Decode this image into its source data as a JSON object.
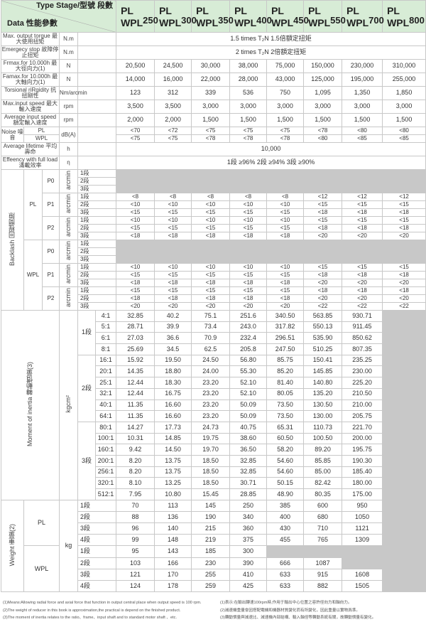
{
  "header": {
    "corner_top": "Type Stage/型號 段數",
    "corner_bottom": "Data 性能參數",
    "models": [
      {
        "a": "PL",
        "b": "WPL",
        "n": "250"
      },
      {
        "a": "PL",
        "b": "WPL",
        "n": "300"
      },
      {
        "a": "PL",
        "b": "WPL",
        "n": "350"
      },
      {
        "a": "PL",
        "b": "WPL",
        "n": "400"
      },
      {
        "a": "PL",
        "b": "WPL",
        "n": "450"
      },
      {
        "a": "PL",
        "b": "WPL",
        "n": "550"
      },
      {
        "a": "PL",
        "b": "WPL",
        "n": "700"
      },
      {
        "a": "PL",
        "b": "WPL",
        "n": "800"
      }
    ]
  },
  "specs": [
    {
      "label": "Max. output torgue 最大使用扭矩",
      "unit": "N.m",
      "span": "1.5 times T₂N      1.5倍額定扭矩"
    },
    {
      "label": "Emergecy stop 故障停止扭矩",
      "unit": "N.m",
      "span": "2 times T₂N      2倍額定扭矩"
    },
    {
      "label": "Frmax.for 10.000h 最大徑向力(1)",
      "unit": "N",
      "values": [
        "20,500",
        "24,500",
        "30,000",
        "38,000",
        "75,000",
        "150,000",
        "230,000",
        "310,000"
      ]
    },
    {
      "label": "Famax.for 10.000h 最大軸向力(1)",
      "unit": "N",
      "values": [
        "14,000",
        "16,000",
        "22,000",
        "28,000",
        "43,000",
        "125,000",
        "195,000",
        "255,000"
      ]
    },
    {
      "label": "Torsional riRgidity 抗扭剛性",
      "unit": "Nm/arcmin",
      "values": [
        "123",
        "312",
        "339",
        "536",
        "750",
        "1,095",
        "1,350",
        "1,850"
      ]
    },
    {
      "label": "Max.input speed 最大輸入速度",
      "unit": "rpm",
      "values": [
        "3,500",
        "3,500",
        "3,000",
        "3,000",
        "3,000",
        "3,000",
        "3,000",
        "3,000"
      ]
    },
    {
      "label": "Average input speed 額定輸入速度",
      "unit": "rpm",
      "values": [
        "2,000",
        "2,000",
        "1,500",
        "1,500",
        "1,500",
        "1,500",
        "1,500",
        "1,500"
      ]
    }
  ],
  "noise": {
    "label": "Noise 噪音",
    "unit": "dB(A)",
    "rows": [
      {
        "type": "PL",
        "values": [
          "<70",
          "<72",
          "<75",
          "<75",
          "<75",
          "<78",
          "<80",
          "<80"
        ]
      },
      {
        "type": "WPL",
        "values": [
          "<75",
          "<75",
          "<78",
          "<78",
          "<78",
          "<80",
          "<85",
          "<85"
        ]
      }
    ]
  },
  "lifetime": {
    "label": "Average lifetime 平均壽命",
    "unit": "h",
    "value": "10,000"
  },
  "efficiency": {
    "label": "Effeency with full load 滿載效率",
    "unit": "η",
    "value": "1段 ≥96%        2段 ≥94%        3段 ≥90%"
  },
  "backlash": {
    "label": "Backlash 回程間隙",
    "unit": "arcmin",
    "groups": [
      {
        "type": "PL",
        "classes": [
          {
            "name": "P0",
            "rows": [
              {
                "stage": "1段",
                "values": null
              },
              {
                "stage": "2段",
                "values": null
              },
              {
                "stage": "3段",
                "values": null
              }
            ]
          },
          {
            "name": "P1",
            "rows": [
              {
                "stage": "1段",
                "values": [
                  "<8",
                  "<8",
                  "<8",
                  "<8",
                  "<8",
                  "<12",
                  "<12",
                  "<12"
                ]
              },
              {
                "stage": "2段",
                "values": [
                  "<10",
                  "<10",
                  "<10",
                  "<10",
                  "<10",
                  "<15",
                  "<15",
                  "<15"
                ]
              },
              {
                "stage": "3段",
                "values": [
                  "<15",
                  "<15",
                  "<15",
                  "<15",
                  "<15",
                  "<18",
                  "<18",
                  "<18"
                ]
              }
            ]
          },
          {
            "name": "P2",
            "rows": [
              {
                "stage": "1段",
                "values": [
                  "<10",
                  "<10",
                  "<10",
                  "<10",
                  "<10",
                  "<15",
                  "<15",
                  "<15"
                ]
              },
              {
                "stage": "2段",
                "values": [
                  "<15",
                  "<15",
                  "<15",
                  "<15",
                  "<15",
                  "<18",
                  "<18",
                  "<18"
                ]
              },
              {
                "stage": "3段",
                "values": [
                  "<18",
                  "<18",
                  "<18",
                  "<18",
                  "<18",
                  "<20",
                  "<20",
                  "<20"
                ]
              }
            ]
          }
        ]
      },
      {
        "type": "WPL",
        "classes": [
          {
            "name": "P0",
            "rows": [
              {
                "stage": "1段",
                "values": null
              },
              {
                "stage": "2段",
                "values": null
              },
              {
                "stage": "3段",
                "values": null
              }
            ]
          },
          {
            "name": "P1",
            "rows": [
              {
                "stage": "1段",
                "values": [
                  "<10",
                  "<10",
                  "<10",
                  "<10",
                  "<10",
                  "<15",
                  "<15",
                  "<15"
                ]
              },
              {
                "stage": "2段",
                "values": [
                  "<15",
                  "<15",
                  "<15",
                  "<15",
                  "<15",
                  "<18",
                  "<18",
                  "<18"
                ]
              },
              {
                "stage": "3段",
                "values": [
                  "<18",
                  "<18",
                  "<18",
                  "<18",
                  "<18",
                  "<20",
                  "<20",
                  "<20"
                ]
              }
            ]
          },
          {
            "name": "P2",
            "rows": [
              {
                "stage": "1段",
                "values": [
                  "<15",
                  "<15",
                  "<15",
                  "<15",
                  "<15",
                  "<18",
                  "<18",
                  "<18"
                ]
              },
              {
                "stage": "2段",
                "values": [
                  "<18",
                  "<18",
                  "<18",
                  "<18",
                  "<18",
                  "<20",
                  "<20",
                  "<20"
                ]
              },
              {
                "stage": "3段",
                "values": [
                  "<20",
                  "<20",
                  "<20",
                  "<20",
                  "<20",
                  "<22",
                  "<22",
                  "<22"
                ]
              }
            ]
          }
        ]
      }
    ]
  },
  "inertia": {
    "label": "Moment of inertia 轉動慣量(3)",
    "unit": "kgcm²",
    "stages": [
      {
        "stage": "1段",
        "rows": [
          [
            "4:1",
            "32.85",
            "40.2",
            "75.1",
            "251.6",
            "340.50",
            "563.85",
            "930.71",
            null
          ],
          [
            "5:1",
            "28.71",
            "39.9",
            "73.4",
            "243.0",
            "317.82",
            "550.13",
            "911.45",
            null
          ],
          [
            "6:1",
            "27.03",
            "36.6",
            "70.9",
            "232.4",
            "296.51",
            "535.90",
            "850.62",
            null
          ],
          [
            "8:1",
            "25.69",
            "34.5",
            "62.5",
            "205.8",
            "247.50",
            "510.25",
            "807.35",
            null
          ]
        ]
      },
      {
        "stage": "2段",
        "rows": [
          [
            "16:1",
            "15.92",
            "19.50",
            "24.50",
            "56.80",
            "85.75",
            "150.41",
            "235.25",
            null
          ],
          [
            "20:1",
            "14.35",
            "18.80",
            "24.00",
            "55.30",
            "85.20",
            "145.85",
            "230.00",
            null
          ],
          [
            "25:1",
            "12.44",
            "18.30",
            "23.20",
            "52.10",
            "81.40",
            "140.80",
            "225.20",
            null
          ],
          [
            "32:1",
            "12.44",
            "16.75",
            "23.20",
            "52.10",
            "80.05",
            "135.20",
            "210.50",
            null
          ],
          [
            "40:1",
            "11.35",
            "16.60",
            "23.20",
            "50.09",
            "73.50",
            "130.50",
            "210.00",
            null
          ],
          [
            "64:1",
            "11.35",
            "16.60",
            "23.20",
            "50.09",
            "73.50",
            "130.00",
            "205.75",
            null
          ]
        ]
      },
      {
        "stage": "3段",
        "rows": [
          [
            "80:1",
            "14.27",
            "17.73",
            "24.73",
            "40.75",
            "65.31",
            "110.73",
            "221.70",
            null
          ],
          [
            "100:1",
            "10.31",
            "14.85",
            "19.75",
            "38.60",
            "60.50",
            "100.50",
            "200.00",
            null
          ],
          [
            "160:1",
            "9.42",
            "14.50",
            "19.70",
            "36.50",
            "58.20",
            "89.20",
            "195.75",
            null
          ],
          [
            "200:1",
            "8.20",
            "13.75",
            "18.50",
            "32.85",
            "54.60",
            "85.85",
            "190.30",
            null
          ],
          [
            "256:1",
            "8.20",
            "13.75",
            "18.50",
            "32.85",
            "54.60",
            "85.00",
            "185.40",
            null
          ],
          [
            "320:1",
            "8.10",
            "13.25",
            "18.50",
            "30.71",
            "50.15",
            "82.42",
            "180.00",
            null
          ],
          [
            "512:1",
            "7.95",
            "10.80",
            "15.45",
            "28.85",
            "48.90",
            "80.35",
            "175.00",
            null
          ]
        ]
      }
    ]
  },
  "weight": {
    "label": "Weight 重量(2)",
    "unit": "kg",
    "groups": [
      {
        "type": "PL",
        "rows": [
          [
            "1段",
            "70",
            "113",
            "145",
            "250",
            "385",
            "600",
            "950",
            null
          ],
          [
            "2段",
            "88",
            "136",
            "190",
            "340",
            "400",
            "680",
            "1050",
            null
          ],
          [
            "3段",
            "96",
            "140",
            "215",
            "360",
            "430",
            "710",
            "1121",
            null
          ],
          [
            "4段",
            "99",
            "148",
            "219",
            "375",
            "455",
            "765",
            "1309",
            null
          ]
        ]
      },
      {
        "type": "WPL",
        "rows": [
          [
            "1段",
            "95",
            "143",
            "185",
            "300",
            null,
            null,
            null,
            null
          ],
          [
            "2段",
            "103",
            "166",
            "230",
            "390",
            "666",
            "1087",
            null,
            null
          ],
          [
            "3段",
            "121",
            "170",
            "255",
            "410",
            "633",
            "915",
            "1608",
            null
          ],
          [
            "4段",
            "124",
            "178",
            "259",
            "425",
            "633",
            "882",
            "1505",
            null
          ]
        ]
      }
    ]
  },
  "footnotes": {
    "en": [
      "(1)Means:Allowing radial force and axial force that function in output central place when output speed is 100 rpm.",
      "(2)The weight of reducer in this book is approximation,the practical is depend on the finished product.",
      "(3)The moment of inertia relates to the ratio、frame、input shaft and to standard motor shaft 、etc."
    ],
    "zh": [
      "(1)表示:在輸出轉速100rpm時,作用于輸出中心位置之容許徑向力和軸向力。",
      "(2)減速機重量會因搭配電機和機器材質變化而有所變化，因此重量以實物爲準。",
      "(3)轉動慣量與減速比、減速機內部結構、輸入軸徑等轉動系統有關，故轉動慣量有變化。"
    ]
  }
}
